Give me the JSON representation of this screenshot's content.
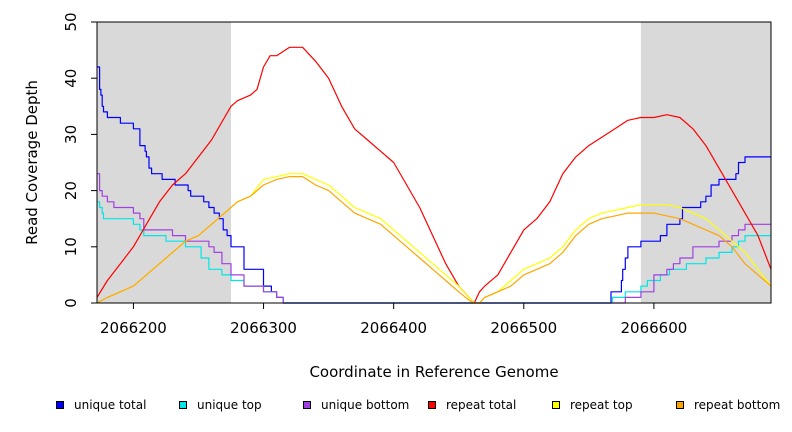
{
  "chart_data": {
    "type": "line",
    "title": "",
    "xlabel": "Coordinate in Reference Genome",
    "ylabel": "Read Coverage Depth",
    "xlim": [
      2066172,
      2066690
    ],
    "ylim": [
      0,
      50
    ],
    "xticks": [
      2066200,
      2066300,
      2066400,
      2066500,
      2066600
    ],
    "xtick_labels": [
      "2066200",
      "2066300",
      "2066400",
      "2066500",
      "2066600"
    ],
    "yticks": [
      0,
      10,
      20,
      30,
      40,
      50
    ],
    "ytick_labels": [
      "0",
      "10",
      "20",
      "30",
      "40",
      "50"
    ],
    "grid": false,
    "legend_position": "bottom",
    "shaded_regions": [
      {
        "x": [
          2066172,
          2066275
        ],
        "color": "#d9d9d9"
      },
      {
        "x": [
          2066590,
          2066690
        ],
        "color": "#d9d9d9"
      }
    ],
    "series": [
      {
        "name": "unique total",
        "color": "#0000ff",
        "step": true,
        "x": [
          2066172,
          2066174,
          2066175,
          2066176,
          2066177,
          2066180,
          2066185,
          2066190,
          2066200,
          2066205,
          2066209,
          2066210,
          2066212,
          2066214,
          2066222,
          2066228,
          2066232,
          2066242,
          2066244,
          2066254,
          2066258,
          2066262,
          2066266,
          2066269,
          2066272,
          2066275,
          2066285,
          2066300,
          2066306,
          2066310,
          2066315,
          2066565,
          2066567,
          2066575,
          2066576,
          2066578,
          2066580,
          2066590,
          2066605,
          2066610,
          2066620,
          2066622,
          2066636,
          2066640,
          2066642,
          2066644,
          2066650,
          2066658,
          2066663,
          2066665,
          2066670,
          2066690
        ],
        "values": [
          42,
          38,
          37,
          35,
          34,
          33,
          33,
          32,
          31,
          28,
          27,
          26,
          24,
          23,
          22,
          22,
          21,
          20,
          19,
          18,
          17,
          16,
          15,
          13,
          12,
          10,
          6,
          3,
          2,
          1,
          0,
          0,
          2,
          4,
          6,
          8,
          10,
          11,
          12,
          14,
          15,
          17,
          18,
          19,
          19,
          21,
          22,
          22,
          23,
          25,
          26,
          26
        ]
      },
      {
        "name": "unique top",
        "color": "#00e5e5",
        "step": true,
        "x": [
          2066172,
          2066174,
          2066176,
          2066177,
          2066180,
          2066190,
          2066200,
          2066205,
          2066208,
          2066210,
          2066225,
          2066232,
          2066240,
          2066252,
          2066258,
          2066268,
          2066275,
          2066285,
          2066300,
          2066310,
          2066315,
          2066565,
          2066568,
          2066578,
          2066590,
          2066595,
          2066605,
          2066612,
          2066615,
          2066625,
          2066640,
          2066650,
          2066660,
          2066665,
          2066670,
          2066690
        ],
        "values": [
          18,
          17,
          16,
          15,
          15,
          15,
          14,
          13,
          12,
          12,
          11,
          11,
          10,
          8,
          6,
          5,
          4,
          3,
          2,
          1,
          0,
          0,
          1,
          2,
          3,
          4,
          5,
          6,
          6,
          7,
          8,
          9,
          10,
          11,
          12,
          12
        ]
      },
      {
        "name": "unique bottom",
        "color": "#a040e0",
        "step": true,
        "x": [
          2066172,
          2066174,
          2066176,
          2066180,
          2066185,
          2066190,
          2066200,
          2066205,
          2066208,
          2066222,
          2066230,
          2066236,
          2066240,
          2066250,
          2066258,
          2066262,
          2066268,
          2066275,
          2066285,
          2066300,
          2066310,
          2066315,
          2066565,
          2066578,
          2066590,
          2066600,
          2066610,
          2066615,
          2066620,
          2066630,
          2066640,
          2066650,
          2066660,
          2066665,
          2066670,
          2066690
        ],
        "values": [
          23,
          20,
          19,
          18,
          17,
          17,
          16,
          15,
          13,
          13,
          12,
          12,
          11,
          11,
          10,
          9,
          7,
          5,
          3,
          2,
          1,
          0,
          0,
          1,
          2,
          5,
          6,
          7,
          8,
          10,
          10,
          11,
          12,
          13,
          14,
          14
        ]
      },
      {
        "name": "repeat total",
        "color": "#ff0000",
        "step": false,
        "x": [
          2066172,
          2066180,
          2066190,
          2066200,
          2066210,
          2066220,
          2066230,
          2066240,
          2066250,
          2066260,
          2066270,
          2066275,
          2066280,
          2066290,
          2066295,
          2066300,
          2066305,
          2066310,
          2066320,
          2066330,
          2066340,
          2066350,
          2066360,
          2066370,
          2066380,
          2066390,
          2066400,
          2066410,
          2066420,
          2066430,
          2066440,
          2066450,
          2066458,
          2066462,
          2066466,
          2066470,
          2066480,
          2066490,
          2066500,
          2066510,
          2066520,
          2066530,
          2066540,
          2066550,
          2066560,
          2066570,
          2066580,
          2066590,
          2066600,
          2066610,
          2066620,
          2066630,
          2066640,
          2066650,
          2066660,
          2066670,
          2066680,
          2066690
        ],
        "values": [
          1,
          4,
          7,
          10,
          14,
          18,
          21,
          23,
          26,
          29,
          33,
          35,
          36,
          37,
          38,
          42,
          44,
          44,
          45.5,
          45.5,
          43,
          40,
          35,
          31,
          29,
          27,
          25,
          21,
          17,
          12,
          7,
          3,
          1,
          0,
          2,
          3,
          5,
          9,
          13,
          15,
          18,
          23,
          26,
          28,
          29.5,
          31,
          32.5,
          33,
          33,
          33.5,
          33,
          31,
          28,
          24,
          20,
          16,
          12,
          6
        ]
      },
      {
        "name": "repeat top",
        "color": "#ffff00",
        "step": false,
        "x": [
          2066172,
          2066180,
          2066190,
          2066200,
          2066210,
          2066220,
          2066230,
          2066240,
          2066250,
          2066260,
          2066270,
          2066280,
          2066290,
          2066300,
          2066310,
          2066320,
          2066330,
          2066340,
          2066350,
          2066360,
          2066370,
          2066380,
          2066390,
          2066400,
          2066410,
          2066420,
          2066430,
          2066440,
          2066450,
          2066458,
          2066462,
          2066466,
          2066470,
          2066480,
          2066490,
          2066500,
          2066510,
          2066520,
          2066530,
          2066540,
          2066550,
          2066560,
          2066570,
          2066580,
          2066590,
          2066600,
          2066610,
          2066620,
          2066630,
          2066640,
          2066650,
          2066660,
          2066670,
          2066680,
          2066690
        ],
        "values": [
          0,
          1,
          2,
          3,
          5,
          7,
          9,
          11,
          12,
          14,
          16,
          18,
          19,
          22,
          22.5,
          23,
          23,
          22,
          21,
          19,
          17,
          16,
          15,
          13,
          11,
          9,
          7,
          5,
          3,
          1,
          0,
          0,
          1,
          2,
          4,
          6,
          7,
          8,
          10,
          13,
          15,
          16,
          16.5,
          17,
          17.5,
          17.5,
          17.5,
          17,
          16,
          15,
          13,
          11,
          9,
          6,
          3
        ]
      },
      {
        "name": "repeat bottom",
        "color": "#ffa500",
        "step": false,
        "x": [
          2066172,
          2066180,
          2066190,
          2066200,
          2066210,
          2066220,
          2066230,
          2066240,
          2066250,
          2066260,
          2066270,
          2066280,
          2066290,
          2066300,
          2066310,
          2066320,
          2066330,
          2066340,
          2066350,
          2066360,
          2066370,
          2066380,
          2066390,
          2066400,
          2066410,
          2066420,
          2066430,
          2066440,
          2066450,
          2066458,
          2066462,
          2066466,
          2066470,
          2066480,
          2066490,
          2066500,
          2066510,
          2066520,
          2066530,
          2066540,
          2066550,
          2066560,
          2066570,
          2066580,
          2066590,
          2066600,
          2066610,
          2066620,
          2066630,
          2066640,
          2066650,
          2066660,
          2066670,
          2066680,
          2066690
        ],
        "values": [
          0,
          1,
          2,
          3,
          5,
          7,
          9,
          11,
          12,
          14,
          16,
          18,
          19,
          21,
          22,
          22.5,
          22.5,
          21,
          20,
          18,
          16,
          15,
          14,
          12,
          10,
          8,
          6,
          4,
          2,
          0.5,
          0,
          0,
          1,
          2,
          3,
          5,
          6,
          7,
          9,
          12,
          14,
          15,
          15.5,
          16,
          16,
          16,
          15.5,
          15,
          14,
          13,
          12,
          10,
          7,
          5,
          3
        ]
      }
    ]
  },
  "legend": [
    {
      "label": "unique total",
      "color": "#0000ff"
    },
    {
      "label": "unique top",
      "color": "#00e5e5"
    },
    {
      "label": "unique bottom",
      "color": "#a040e0"
    },
    {
      "label": "repeat total",
      "color": "#ff0000"
    },
    {
      "label": "repeat top",
      "color": "#ffff00"
    },
    {
      "label": "repeat bottom",
      "color": "#ffa500"
    }
  ]
}
